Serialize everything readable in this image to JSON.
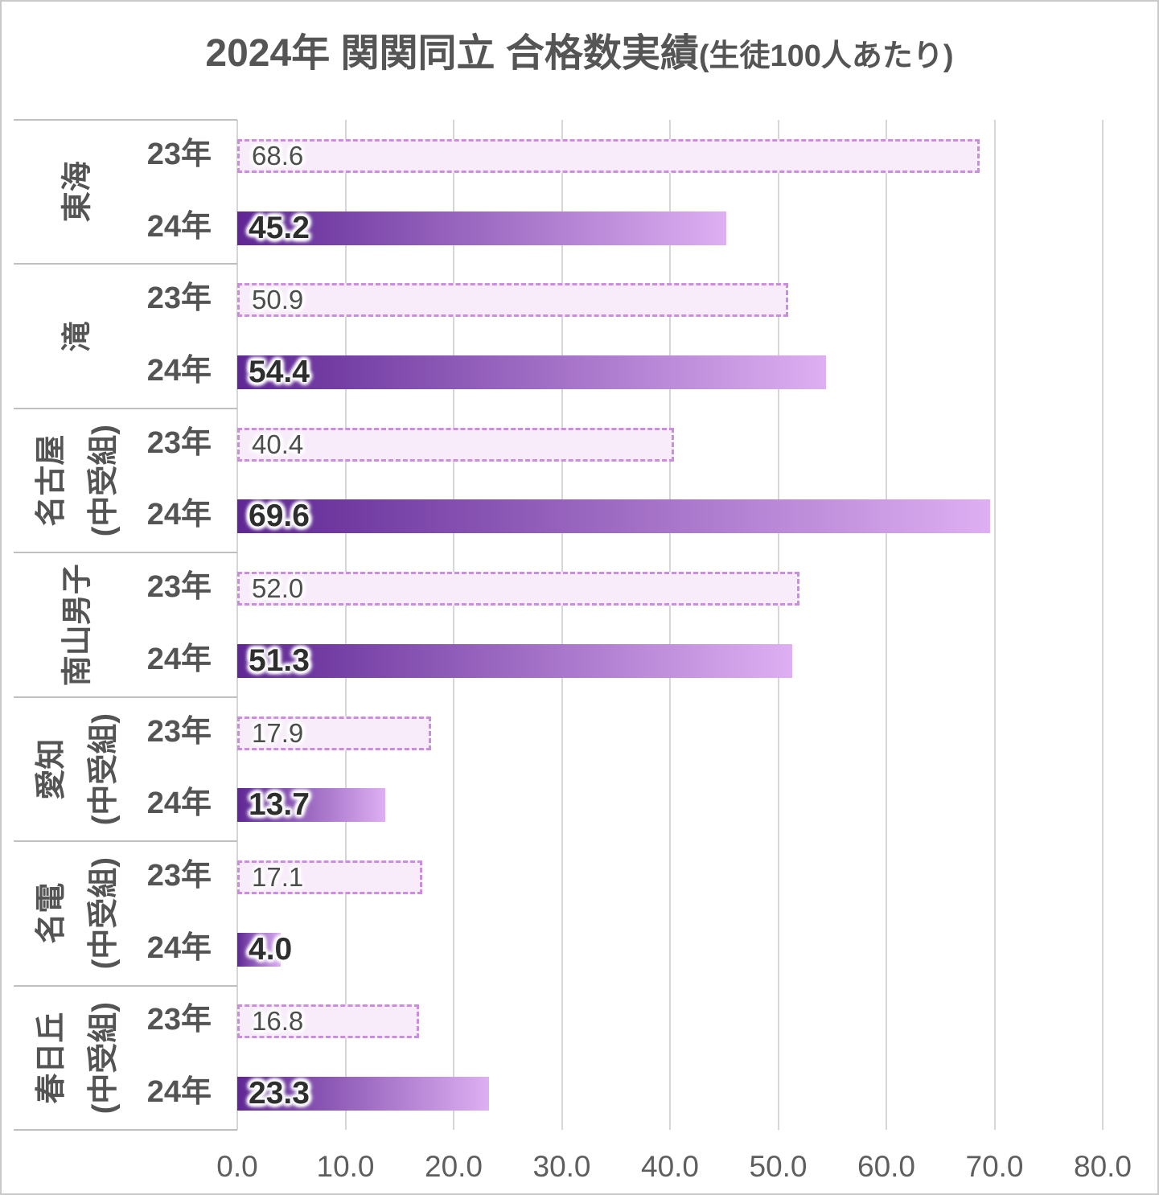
{
  "title": {
    "main": "2024年 関関同立 合格数実績",
    "suffix": "(生徒100人あたり)"
  },
  "chart_data": {
    "type": "bar",
    "orientation": "horizontal",
    "title": "2024年 関関同立 合格数実績(生徒100人あたり)",
    "categories": [
      "東海",
      "滝",
      "名古屋\n(中受組)",
      "南山男子",
      "愛知\n(中受組)",
      "名電\n(中受組)",
      "春日丘\n(中受組)"
    ],
    "series": [
      {
        "name": "23年",
        "values": [
          68.6,
          50.9,
          40.4,
          52.0,
          17.9,
          17.1,
          16.8
        ]
      },
      {
        "name": "24年",
        "values": [
          45.2,
          54.4,
          69.6,
          51.3,
          13.7,
          4.0,
          23.3
        ]
      }
    ],
    "xlim": [
      0,
      80
    ],
    "xticks": [
      "0.0",
      "10.0",
      "20.0",
      "30.0",
      "40.0",
      "50.0",
      "60.0",
      "70.0",
      "80.0"
    ],
    "grid": true,
    "legend_position": "none",
    "value_label_decimals": 1
  },
  "colors": {
    "bar23_fill": "#F8ECFA",
    "bar23_border": "#CC8CE0",
    "bar24_gradient_start": "#5E2794",
    "bar24_gradient_end": "#DEAFF2",
    "value23_text": "#4D4D4D",
    "value24_text": "#2E2E2E",
    "category_text": "#545454",
    "axis_text": "#5E5E5E",
    "title_text": "#555555",
    "gridline": "#D6D6D6",
    "separator": "#BFBFBF",
    "chart_border": "#C9C9C9"
  }
}
